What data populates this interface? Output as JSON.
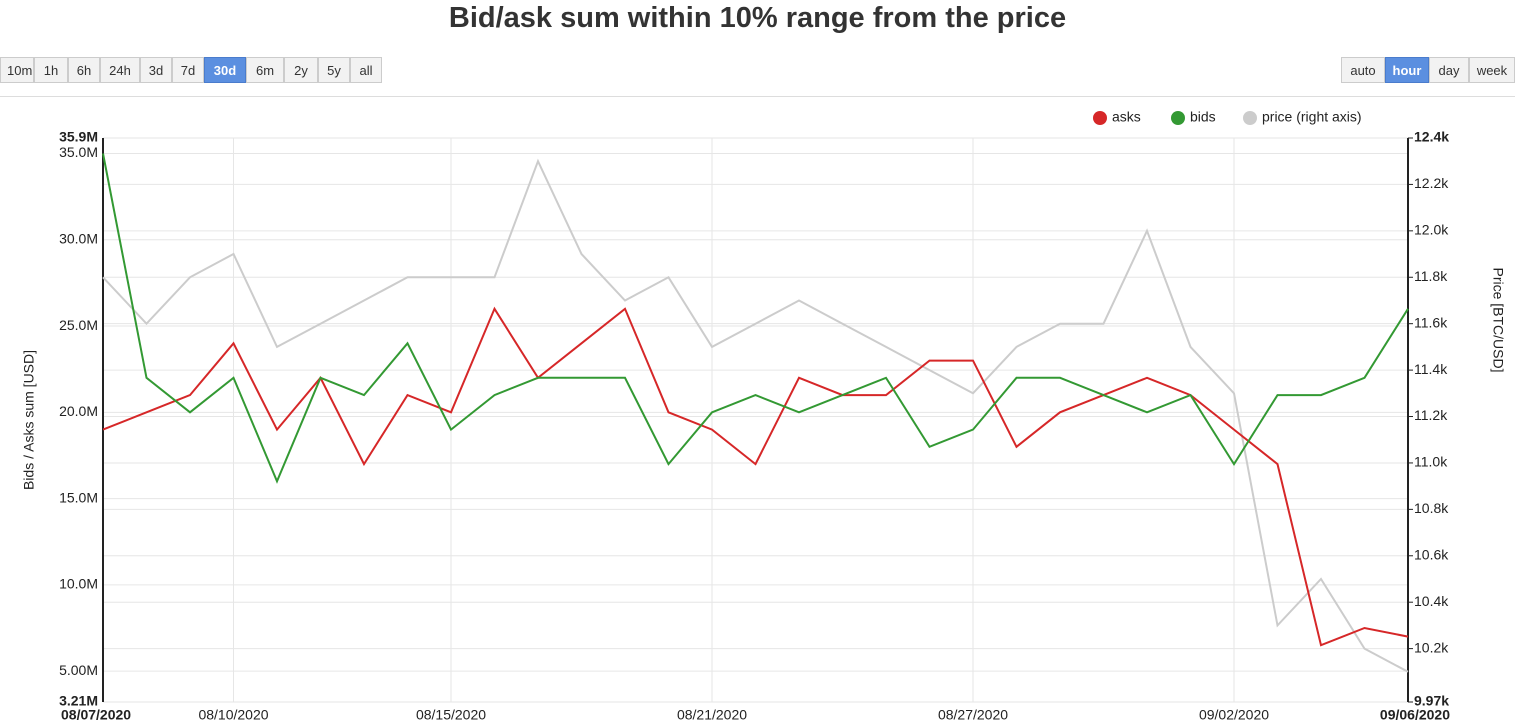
{
  "toolbar": {
    "ranges": [
      "10m",
      "1h",
      "6h",
      "24h",
      "3d",
      "7d",
      "30d",
      "6m",
      "2y",
      "5y",
      "all"
    ],
    "active_range": "30d",
    "resolutions": [
      "auto",
      "hour",
      "day",
      "week"
    ],
    "active_resolution": "hour"
  },
  "chart_data": {
    "type": "line",
    "title": "Bid/ask sum within 10% range from the price",
    "y_label": "Bids / Asks sum [USD]",
    "y2_label": "Price [BTC/USD]",
    "x": [
      "08/07/2020",
      "08/08/2020",
      "08/09/2020",
      "08/10/2020",
      "08/11/2020",
      "08/12/2020",
      "08/13/2020",
      "08/14/2020",
      "08/15/2020",
      "08/16/2020",
      "08/17/2020",
      "08/18/2020",
      "08/19/2020",
      "08/20/2020",
      "08/21/2020",
      "08/22/2020",
      "08/23/2020",
      "08/24/2020",
      "08/25/2020",
      "08/26/2020",
      "08/27/2020",
      "08/28/2020",
      "08/29/2020",
      "08/30/2020",
      "08/31/2020",
      "09/01/2020",
      "09/02/2020",
      "09/03/2020",
      "09/04/2020",
      "09/05/2020",
      "09/06/2020"
    ],
    "xlim": [
      "08/07/2020",
      "09/06/2020"
    ],
    "xticks": [
      "08/07/2020",
      "08/10/2020",
      "08/15/2020",
      "08/21/2020",
      "08/27/2020",
      "09/02/2020",
      "09/06/2020"
    ],
    "ylim": [
      3210000,
      35900000
    ],
    "yticks": [
      {
        "value": 3210000,
        "label": "3.21M"
      },
      {
        "value": 5000000,
        "label": "5.00M"
      },
      {
        "value": 10000000,
        "label": "10.0M"
      },
      {
        "value": 15000000,
        "label": "15.0M"
      },
      {
        "value": 20000000,
        "label": "20.0M"
      },
      {
        "value": 25000000,
        "label": "25.0M"
      },
      {
        "value": 30000000,
        "label": "30.0M"
      },
      {
        "value": 35000000,
        "label": "35.0M"
      },
      {
        "value": 35900000,
        "label": "35.9M"
      }
    ],
    "y2lim": [
      9970,
      12400
    ],
    "y2ticks": [
      {
        "value": 9970,
        "label": "9.97k"
      },
      {
        "value": 10200,
        "label": "10.2k"
      },
      {
        "value": 10400,
        "label": "10.4k"
      },
      {
        "value": 10600,
        "label": "10.6k"
      },
      {
        "value": 10800,
        "label": "10.8k"
      },
      {
        "value": 11000,
        "label": "11.0k"
      },
      {
        "value": 11200,
        "label": "11.2k"
      },
      {
        "value": 11400,
        "label": "11.4k"
      },
      {
        "value": 11600,
        "label": "11.6k"
      },
      {
        "value": 11800,
        "label": "11.8k"
      },
      {
        "value": 12000,
        "label": "12.0k"
      },
      {
        "value": 12200,
        "label": "12.2k"
      },
      {
        "value": 12400,
        "label": "12.4k"
      }
    ],
    "grid": true,
    "legend": "top-right",
    "series": [
      {
        "name": "asks",
        "color": "#d62728",
        "values": [
          19000000,
          20000000,
          21000000,
          24000000,
          19000000,
          22000000,
          17000000,
          21000000,
          20000000,
          26000000,
          22000000,
          24000000,
          26000000,
          20000000,
          19000000,
          17000000,
          22000000,
          21000000,
          21000000,
          23000000,
          23000000,
          18000000,
          20000000,
          21000000,
          22000000,
          21000000,
          19000000,
          17000000,
          6500000,
          7500000,
          7000000
        ]
      },
      {
        "name": "bids",
        "color": "#339933",
        "values": [
          35000000,
          22000000,
          20000000,
          22000000,
          16000000,
          22000000,
          21000000,
          24000000,
          19000000,
          21000000,
          22000000,
          22000000,
          22000000,
          17000000,
          20000000,
          21000000,
          20000000,
          21000000,
          22000000,
          18000000,
          19000000,
          22000000,
          22000000,
          21000000,
          20000000,
          21000000,
          17000000,
          21000000,
          21000000,
          22000000,
          26000000
        ]
      },
      {
        "name": "price (right axis)",
        "color": "#cccccc",
        "axis": "y2",
        "values": [
          11800,
          11600,
          11800,
          11900,
          11500,
          11600,
          11700,
          11800,
          11800,
          11800,
          12300,
          11900,
          11700,
          11800,
          11500,
          11600,
          11700,
          11600,
          11500,
          11400,
          11300,
          11500,
          11600,
          11600,
          12000,
          11500,
          11300,
          10300,
          10500,
          10200,
          10100
        ]
      }
    ]
  }
}
